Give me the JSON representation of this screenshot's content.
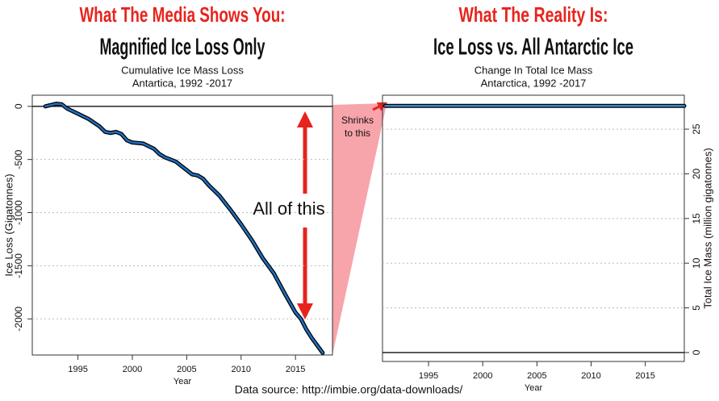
{
  "source": "Data source: http://imbie.org/data-downloads/",
  "chart_data": [
    {
      "type": "line",
      "title": "What The Media Shows You:",
      "subtitle": "Magnified Ice Loss Only",
      "caption": [
        "Cumulative Ice Mass Loss",
        "Antartica, 1992 -2017"
      ],
      "xlabel": "Year",
      "ylabel": "Ice Loss (Gigatonnes)",
      "x": [
        1992,
        1993,
        1993.5,
        1994,
        1995,
        1996,
        1997,
        1997.5,
        1998,
        1998.5,
        1999,
        1999.5,
        2000,
        2001,
        2002,
        2002.5,
        2003,
        2004,
        2005,
        2005.5,
        2006,
        2006.5,
        2007,
        2008,
        2009,
        2010,
        2011,
        2012,
        2013,
        2014,
        2015,
        2015.5,
        2016,
        2016.5,
        2017,
        2017.5
      ],
      "values": [
        0,
        25,
        20,
        -20,
        -70,
        -120,
        -190,
        -240,
        -250,
        -240,
        -260,
        -320,
        -340,
        -350,
        -400,
        -450,
        -480,
        -520,
        -600,
        -640,
        -650,
        -680,
        -740,
        -840,
        -970,
        -1110,
        -1260,
        -1430,
        -1570,
        -1760,
        -1940,
        -2000,
        -2100,
        -2180,
        -2250,
        -2320
      ],
      "color": "#1f6fc0",
      "outline_color": "#000000",
      "xlim": [
        1990.8,
        2018.4
      ],
      "ylim": [
        -2340,
        105
      ],
      "xticks": [
        1995,
        2000,
        2005,
        2010,
        2015
      ],
      "yticks": [
        -2000,
        -1500,
        -1000,
        -500,
        0
      ],
      "grid": true,
      "hline": 0,
      "yaxis_side": "left",
      "annotation": "All of this"
    },
    {
      "type": "line",
      "title": "What The Reality Is:",
      "subtitle": "Ice Loss vs. All Antarctic Ice",
      "caption": [
        "Change In Total Ice Mass",
        "Antarctica, 1992 -2017"
      ],
      "xlabel": "Year",
      "ylabel": "Total Ice Mass (million gigatonnes)",
      "x": [
        1991,
        1997,
        2002,
        2007,
        2012,
        2018.6
      ],
      "values": [
        27.6,
        27.6,
        27.6,
        27.599,
        27.599,
        27.598
      ],
      "color": "#3a86c8",
      "outline_color": "#000000",
      "xlim": [
        1990.75,
        2018.6
      ],
      "ylim": [
        -1,
        28.8
      ],
      "xticks": [
        1995,
        2000,
        2005,
        2010,
        2015
      ],
      "yticks": [
        0,
        5,
        10,
        15,
        20,
        25
      ],
      "grid": true,
      "hline": 0,
      "yaxis_side": "right",
      "annotation": [
        "Shrinks",
        "to this"
      ]
    }
  ]
}
